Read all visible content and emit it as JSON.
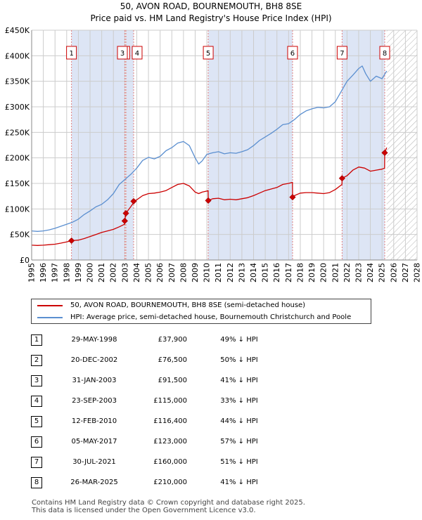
{
  "title_line1": "50, AVON ROAD, BOURNEMOUTH, BH8 8SE",
  "title_line2": "Price paid vs. HM Land Registry's House Price Index (HPI)",
  "colors": {
    "red": "#cc0000",
    "blue": "#5b8fd0",
    "band": "#dde5f5",
    "grid": "#cccccc",
    "vline": "#e08080",
    "hatch": "#b0b0b0"
  },
  "chart_data": {
    "type": "line",
    "xlim": [
      1995,
      2028
    ],
    "ylim": [
      0,
      450000
    ],
    "y_ticks": [
      0,
      50000,
      100000,
      150000,
      200000,
      250000,
      300000,
      350000,
      400000,
      450000
    ],
    "y_tick_labels": [
      "£0",
      "£50K",
      "£100K",
      "£150K",
      "£200K",
      "£250K",
      "£300K",
      "£350K",
      "£400K",
      "£450K"
    ],
    "x_ticks": [
      1995,
      1996,
      1997,
      1998,
      1999,
      2000,
      2001,
      2002,
      2003,
      2004,
      2005,
      2006,
      2007,
      2008,
      2009,
      2010,
      2011,
      2012,
      2013,
      2014,
      2015,
      2016,
      2017,
      2018,
      2019,
      2020,
      2021,
      2022,
      2023,
      2024,
      2025,
      2026,
      2027,
      2028
    ],
    "x_tick_labels": [
      "1995",
      "1996",
      "1997",
      "1998",
      "1999",
      "2000",
      "2001",
      "2002",
      "2003",
      "2004",
      "2005",
      "2006",
      "2007",
      "2008",
      "2009",
      "2010",
      "2011",
      "2012",
      "2013",
      "2014",
      "2015",
      "2016",
      "2017",
      "2018",
      "2019",
      "2020",
      "2021",
      "2022",
      "2023",
      "2024",
      "2025",
      "2026",
      "2027",
      "2028"
    ],
    "data_end": 2025.4,
    "shaded_bands": [
      [
        1998.41,
        2002.97
      ],
      [
        2003.07,
        2003.73
      ],
      [
        2010.12,
        2017.34
      ],
      [
        2021.58,
        2025.23
      ]
    ],
    "series": [
      {
        "name": "50, AVON ROAD, BOURNEMOUTH, BH8 8SE (semi-detached house)",
        "color": "#cc0000",
        "x": [
          1995.0,
          1995.5,
          1996.0,
          1996.5,
          1997.0,
          1997.5,
          1998.0,
          1998.41,
          1999.0,
          1999.5,
          2000.0,
          2000.5,
          2001.0,
          2001.5,
          2002.0,
          2002.5,
          2002.96,
          2002.97,
          2003.07,
          2003.5,
          2003.72,
          2003.73,
          2004.0,
          2004.5,
          2005.0,
          2005.5,
          2006.0,
          2006.5,
          2007.0,
          2007.5,
          2008.0,
          2008.5,
          2009.0,
          2009.3,
          2009.6,
          2010.0,
          2010.11,
          2010.12,
          2010.5,
          2011.0,
          2011.5,
          2012.0,
          2012.5,
          2013.0,
          2013.5,
          2014.0,
          2014.5,
          2015.0,
          2015.5,
          2016.0,
          2016.5,
          2017.0,
          2017.33,
          2017.34,
          2017.5,
          2018.0,
          2018.5,
          2019.0,
          2019.5,
          2020.0,
          2020.5,
          2021.0,
          2021.57,
          2021.58,
          2022.0,
          2022.5,
          2023.0,
          2023.5,
          2024.0,
          2024.5,
          2025.0,
          2025.22,
          2025.23,
          2025.4
        ],
        "values": [
          29000,
          28500,
          29000,
          30000,
          31000,
          33000,
          35500,
          37900,
          39000,
          42000,
          46000,
          50000,
          54000,
          57000,
          60000,
          65000,
          70000,
          76500,
          91500,
          105000,
          112000,
          115000,
          118000,
          126000,
          130000,
          131000,
          133000,
          136000,
          142000,
          148000,
          150000,
          145000,
          133000,
          130000,
          133000,
          135000,
          136000,
          116400,
          120000,
          121000,
          118000,
          119000,
          118000,
          120000,
          122000,
          126000,
          131000,
          136000,
          139000,
          142000,
          148000,
          150000,
          152000,
          123000,
          126000,
          131000,
          132000,
          132000,
          131000,
          130000,
          132000,
          138000,
          148000,
          160000,
          165000,
          176000,
          182000,
          180000,
          174000,
          176000,
          178000,
          180000,
          210000,
          220000
        ]
      },
      {
        "name": "HPI: Average price, semi-detached house, Bournemouth Christchurch and Poole",
        "color": "#5b8fd0",
        "x": [
          1995.0,
          1995.5,
          1996.0,
          1996.5,
          1997.0,
          1997.5,
          1998.0,
          1998.5,
          1999.0,
          1999.5,
          2000.0,
          2000.5,
          2001.0,
          2001.5,
          2002.0,
          2002.5,
          2003.0,
          2003.5,
          2004.0,
          2004.5,
          2005.0,
          2005.5,
          2006.0,
          2006.5,
          2007.0,
          2007.5,
          2008.0,
          2008.5,
          2009.0,
          2009.3,
          2009.6,
          2010.0,
          2010.5,
          2011.0,
          2011.5,
          2012.0,
          2012.5,
          2013.0,
          2013.5,
          2014.0,
          2014.5,
          2015.0,
          2015.5,
          2016.0,
          2016.5,
          2017.0,
          2017.5,
          2018.0,
          2018.5,
          2019.0,
          2019.5,
          2020.0,
          2020.5,
          2021.0,
          2021.5,
          2022.0,
          2022.5,
          2023.0,
          2023.3,
          2023.6,
          2024.0,
          2024.5,
          2025.0,
          2025.4
        ],
        "values": [
          57000,
          56000,
          57000,
          59000,
          62000,
          66000,
          70000,
          74000,
          80000,
          89000,
          96000,
          104000,
          109000,
          118000,
          130000,
          148000,
          158000,
          168000,
          180000,
          195000,
          201000,
          198000,
          203000,
          214000,
          220000,
          229000,
          232000,
          224000,
          200000,
          188000,
          194000,
          207000,
          210000,
          212000,
          208000,
          210000,
          209000,
          212000,
          216000,
          224000,
          234000,
          241000,
          248000,
          256000,
          265000,
          267000,
          275000,
          285000,
          292000,
          296000,
          299000,
          298000,
          300000,
          310000,
          330000,
          350000,
          362000,
          375000,
          380000,
          365000,
          350000,
          360000,
          355000,
          370000
        ]
      }
    ],
    "sales": [
      {
        "label": "1",
        "x": 1998.41,
        "price": 37900
      },
      {
        "label": "2",
        "x": 2002.97,
        "price": 76500
      },
      {
        "label": "3",
        "x": 2003.07,
        "price": 91500
      },
      {
        "label": "4",
        "x": 2003.73,
        "price": 115000
      },
      {
        "label": "5",
        "x": 2010.12,
        "price": 116400
      },
      {
        "label": "6",
        "x": 2017.34,
        "price": 123000
      },
      {
        "label": "7",
        "x": 2021.58,
        "price": 160000
      },
      {
        "label": "8",
        "x": 2025.23,
        "price": 210000
      }
    ]
  },
  "legend": {
    "red_label": "50, AVON ROAD, BOURNEMOUTH, BH8 8SE (semi-detached house)",
    "blue_label": "HPI: Average price, semi-detached house, Bournemouth Christchurch and Poole"
  },
  "transactions": [
    {
      "num": "1",
      "date": "29-MAY-1998",
      "price": "£37,900",
      "hpi": "49% ↓ HPI"
    },
    {
      "num": "2",
      "date": "20-DEC-2002",
      "price": "£76,500",
      "hpi": "50% ↓ HPI"
    },
    {
      "num": "3",
      "date": "31-JAN-2003",
      "price": "£91,500",
      "hpi": "41% ↓ HPI"
    },
    {
      "num": "4",
      "date": "23-SEP-2003",
      "price": "£115,000",
      "hpi": "33% ↓ HPI"
    },
    {
      "num": "5",
      "date": "12-FEB-2010",
      "price": "£116,400",
      "hpi": "44% ↓ HPI"
    },
    {
      "num": "6",
      "date": "05-MAY-2017",
      "price": "£123,000",
      "hpi": "57% ↓ HPI"
    },
    {
      "num": "7",
      "date": "30-JUL-2021",
      "price": "£160,000",
      "hpi": "51% ↓ HPI"
    },
    {
      "num": "8",
      "date": "26-MAR-2025",
      "price": "£210,000",
      "hpi": "41% ↓ HPI"
    }
  ],
  "footer": {
    "line1": "Contains HM Land Registry data © Crown copyright and database right 2025.",
    "line2": "This data is licensed under the Open Government Licence v3.0."
  }
}
